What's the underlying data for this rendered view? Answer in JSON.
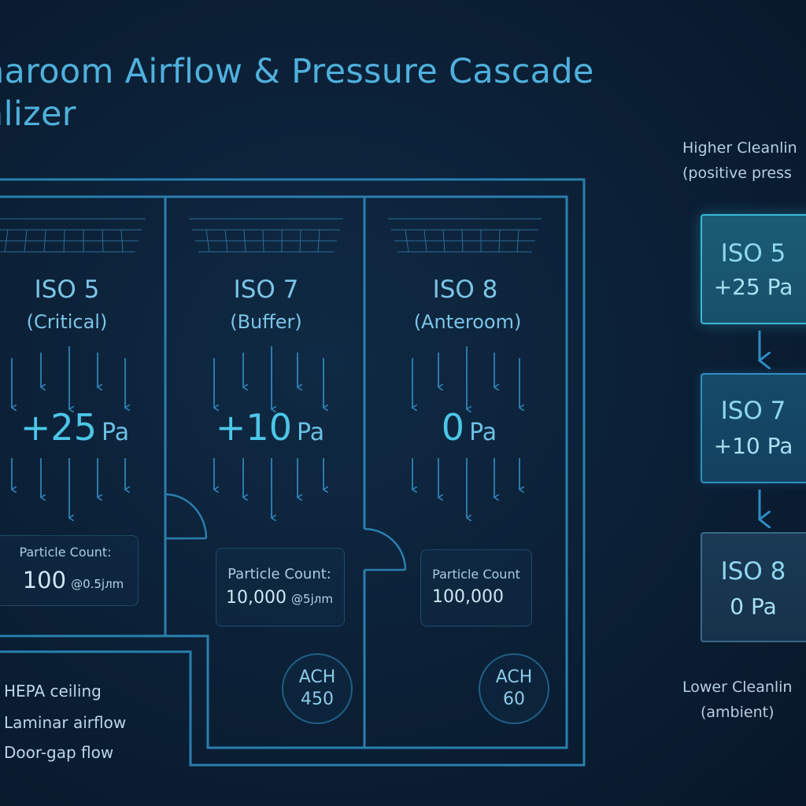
{
  "title": "naroom Airflow & Pressure Cascade\nalizer",
  "zones": [
    {
      "iso": "ISO 5",
      "sub": "(Critical)",
      "pressure": "+25",
      "unit": "Pa",
      "particle_label": "Particle Count:",
      "particle_value": "100",
      "particle_unit": "@0.5jлm"
    },
    {
      "iso": "ISO 7",
      "sub": "(Buffer)",
      "pressure": "+10",
      "unit": "Pa",
      "particle_label": "Particle Count:",
      "particle_value": "10,000",
      "particle_unit": "@5jлm"
    },
    {
      "iso": "ISO 8",
      "sub": "(Anteroom)",
      "pressure": "0",
      "unit": "Pa",
      "particle_label": "Particle Count",
      "particle_value": "100,000",
      "particle_unit": ""
    }
  ],
  "ach": [
    {
      "label": "ACH",
      "value": "450"
    },
    {
      "label": "ACH",
      "value": "60"
    }
  ],
  "legend": [
    "HEPA ceiling",
    "Laminar airflow",
    "Door-gap flow"
  ],
  "cascade": {
    "top_label": "Higher Cleanlin\n(positive press",
    "bottom_label": "Lower Cleanlin\n(ambient)",
    "steps": [
      {
        "iso": "ISO 5",
        "pa": "+25 Pa"
      },
      {
        "iso": "ISO 7",
        "pa": "+10 Pa"
      },
      {
        "iso": "ISO 8",
        "pa": "0 Pa"
      }
    ]
  },
  "colors": {
    "background": "#0b1f35",
    "wall": "#2a7fae",
    "arrow": "#2f83b8",
    "accent": "#4cc6e8"
  }
}
